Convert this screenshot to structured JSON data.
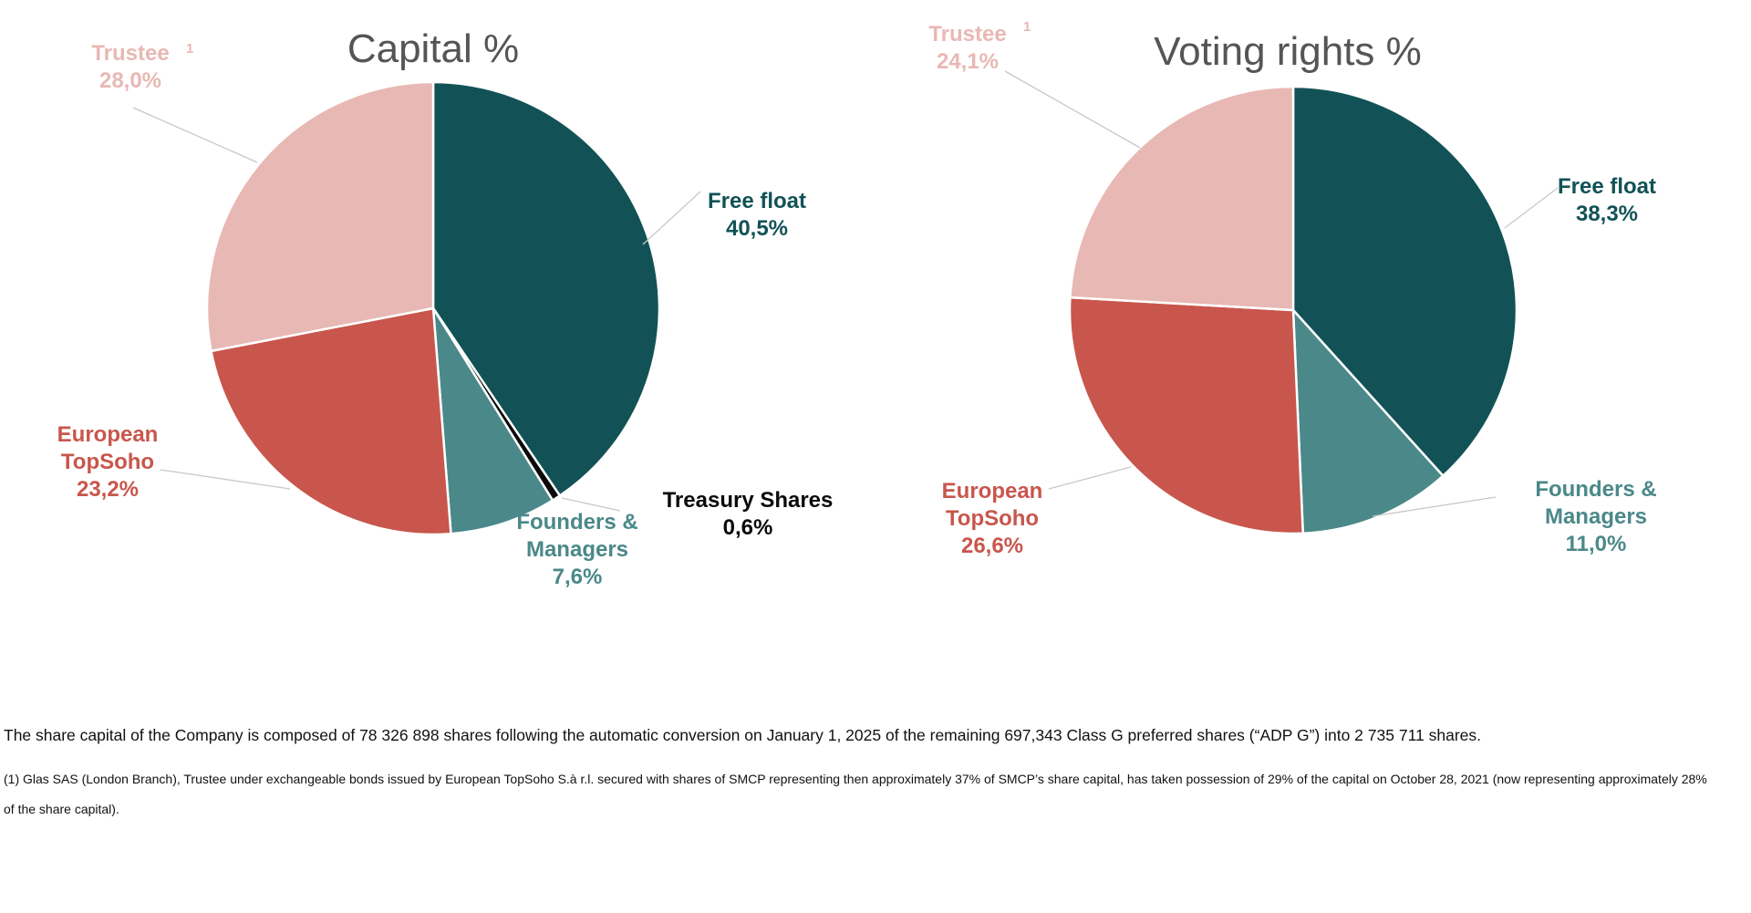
{
  "colors": {
    "free_float": "#125256",
    "founders": "#4b8889",
    "european_topsoho": "#c8564c",
    "trustee": "#e8b8b4",
    "treasury": "#0a0a0a",
    "title": "#555555",
    "leader": "#c8c8c8"
  },
  "chart_data": [
    {
      "type": "pie",
      "title": "Capital %",
      "start_angle_deg": 0,
      "direction": "clockwise",
      "slices": [
        {
          "key": "free_float",
          "label": [
            "Free float"
          ],
          "value": 40.5,
          "value_label": "40,5%",
          "superscript": ""
        },
        {
          "key": "treasury",
          "label": [
            "Treasury Shares"
          ],
          "value": 0.6,
          "value_label": "0,6%",
          "superscript": ""
        },
        {
          "key": "founders",
          "label": [
            "Founders &",
            "Managers"
          ],
          "value": 7.6,
          "value_label": "7,6%",
          "superscript": ""
        },
        {
          "key": "european_topsoho",
          "label": [
            "European",
            "TopSoho"
          ],
          "value": 23.2,
          "value_label": "23,2%",
          "superscript": ""
        },
        {
          "key": "trustee",
          "label": [
            "Trustee"
          ],
          "value": 28.0,
          "value_label": "28,0%",
          "superscript": "1"
        }
      ]
    },
    {
      "type": "pie",
      "title": "Voting rights %",
      "start_angle_deg": 0,
      "direction": "clockwise",
      "slices": [
        {
          "key": "free_float",
          "label": [
            "Free float"
          ],
          "value": 38.3,
          "value_label": "38,3%",
          "superscript": ""
        },
        {
          "key": "founders",
          "label": [
            "Founders &",
            "Managers"
          ],
          "value": 11.0,
          "value_label": "11,0%",
          "superscript": ""
        },
        {
          "key": "european_topsoho",
          "label": [
            "European",
            "TopSoho"
          ],
          "value": 26.6,
          "value_label": "26,6%",
          "superscript": ""
        },
        {
          "key": "trustee",
          "label": [
            "Trustee"
          ],
          "value": 24.1,
          "value_label": "24,1%",
          "superscript": "1"
        }
      ]
    }
  ],
  "notes": {
    "main": "The share capital of the Company is composed of 78 326 898 shares following the automatic conversion on January 1, 2025 of the remaining 697,343 Class G preferred shares (“ADP G”) into 2 735 711 shares.",
    "footnote": "(1) Glas SAS (London Branch), Trustee under exchangeable bonds issued by European TopSoho S.à r.l. secured with shares of SMCP representing then approximately 37% of SMCP’s share capital, has taken possession of 29% of the capital on October 28, 2021 (now representing approximately 28% of the share capital)."
  }
}
